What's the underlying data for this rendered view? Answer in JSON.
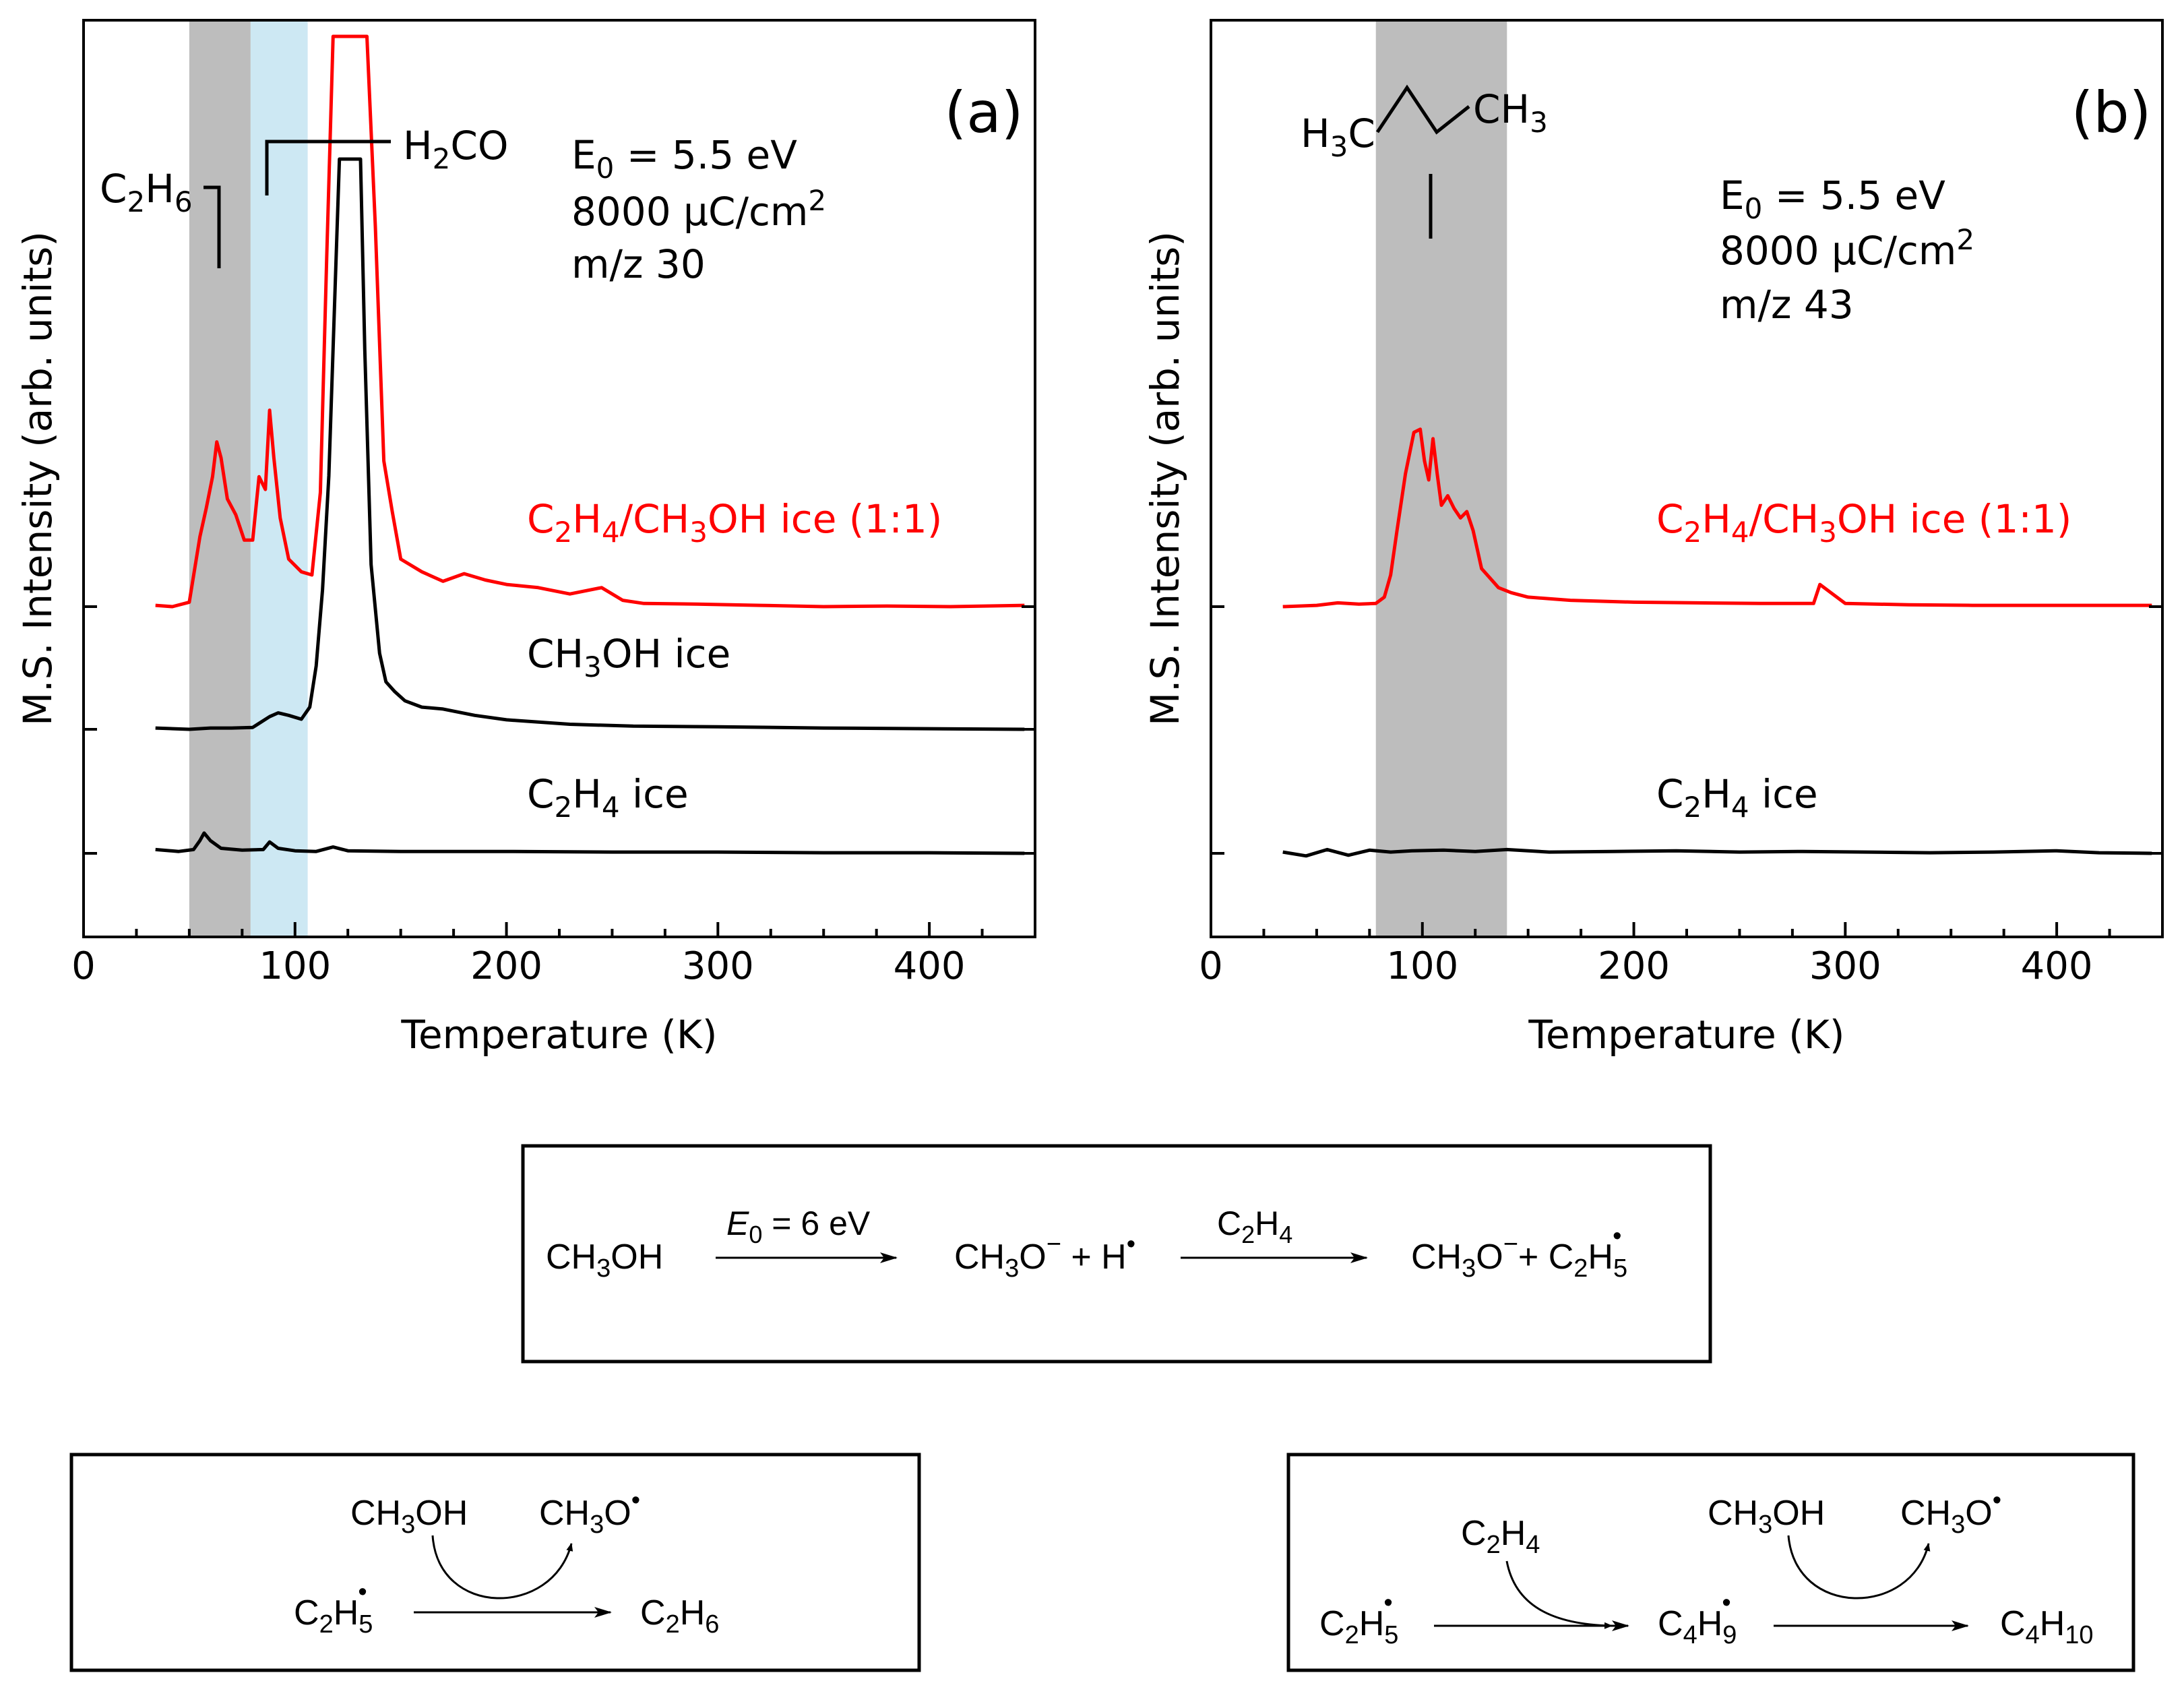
{
  "chart_data": [
    {
      "type": "line",
      "panel": "(a)",
      "xlabel": "Temperature (K)",
      "ylabel": "M.S. Intensity (arb. units)",
      "xlim": [
        0,
        450
      ],
      "x_ticks": [
        0,
        100,
        200,
        300,
        400
      ],
      "grid": false,
      "annotations": {
        "energy": [
          "E",
          "0",
          " = 5.5 eV"
        ],
        "dose": [
          "8000 μC/cm",
          "2"
        ],
        "mass": "m/z 30",
        "c2h6": [
          "C",
          "2",
          "H",
          "6"
        ],
        "h2co": [
          "H",
          "2",
          "CO"
        ]
      },
      "shaded_regions": [
        {
          "from": 50,
          "to": 79,
          "color": "#bdbdbd"
        },
        {
          "from": 79,
          "to": 106,
          "color": "#cde8f3"
        }
      ],
      "series": [
        {
          "name": [
            "C",
            "2",
            "H",
            "4",
            "/CH",
            "3",
            "OH ice (1:1)"
          ],
          "color": "#ff0000",
          "baseline": 2,
          "x": [
            34,
            42,
            50,
            55,
            58,
            61,
            63,
            65,
            68,
            72,
            76,
            80,
            83,
            86,
            88,
            90,
            93,
            97,
            103,
            108,
            112,
            115,
            118,
            122,
            128,
            134,
            138,
            142,
            146,
            150,
            160,
            170,
            180,
            190,
            200,
            215,
            230,
            245,
            255,
            265,
            290,
            320,
            350,
            380,
            410,
            445
          ],
          "y": [
            0.02,
            0.0,
            0.07,
            1.1,
            1.55,
            2.05,
            2.6,
            2.35,
            1.7,
            1.45,
            1.05,
            1.05,
            2.05,
            1.85,
            3.1,
            2.35,
            1.4,
            0.75,
            0.55,
            0.5,
            1.8,
            5.5,
            9.0,
            9.0,
            9.0,
            9.0,
            6.0,
            2.3,
            1.5,
            0.75,
            0.55,
            0.4,
            0.52,
            0.42,
            0.35,
            0.3,
            0.2,
            0.3,
            0.1,
            0.05,
            0.04,
            0.02,
            0.0,
            0.01,
            0.0,
            0.02
          ]
        },
        {
          "name": [
            "CH",
            "3",
            "OH ice"
          ],
          "color": "#000000",
          "baseline": 1,
          "x": [
            34,
            50,
            60,
            70,
            80,
            88,
            92,
            97,
            103,
            107,
            110,
            113,
            116,
            119,
            121,
            131,
            133,
            136,
            140,
            143,
            147,
            152,
            160,
            170,
            185,
            200,
            230,
            260,
            300,
            350,
            400,
            445
          ],
          "y": [
            0.02,
            0.0,
            0.02,
            0.02,
            0.03,
            0.2,
            0.26,
            0.22,
            0.16,
            0.35,
            1.0,
            2.2,
            4.0,
            7.0,
            9.0,
            9.0,
            6.0,
            2.6,
            1.2,
            0.75,
            0.6,
            0.45,
            0.35,
            0.32,
            0.22,
            0.15,
            0.08,
            0.05,
            0.04,
            0.02,
            0.01,
            0.0
          ]
        },
        {
          "name": [
            "C",
            "2",
            "H",
            "4",
            " ice"
          ],
          "color": "#000000",
          "baseline": 0,
          "x": [
            34,
            45,
            52,
            55,
            57,
            60,
            65,
            75,
            85,
            88,
            92,
            100,
            110,
            118,
            125,
            150,
            200,
            250,
            300,
            350,
            400,
            445
          ],
          "y": [
            0.06,
            0.03,
            0.06,
            0.2,
            0.32,
            0.2,
            0.08,
            0.05,
            0.06,
            0.18,
            0.08,
            0.04,
            0.03,
            0.1,
            0.04,
            0.03,
            0.03,
            0.02,
            0.02,
            0.01,
            0.01,
            0.0
          ]
        }
      ]
    },
    {
      "type": "line",
      "panel": "(b)",
      "xlabel": "Temperature (K)",
      "ylabel": "M.S. Intensity (arb. units)",
      "xlim": [
        0,
        450
      ],
      "x_ticks": [
        0,
        100,
        200,
        300,
        400
      ],
      "grid": false,
      "annotations": {
        "energy": [
          "E",
          "0",
          " = 5.5 eV"
        ],
        "dose": [
          "8000 μC/cm",
          "2"
        ],
        "mass": "m/z 43",
        "butane_left": [
          "H",
          "3",
          "C"
        ],
        "butane_right": [
          "CH",
          "3"
        ]
      },
      "shaded_regions": [
        {
          "from": 78,
          "to": 140,
          "color": "#bdbdbd"
        }
      ],
      "series": [
        {
          "name": [
            "C",
            "2",
            "H",
            "4",
            "/CH",
            "3",
            "OH ice (1:1)"
          ],
          "color": "#ff0000",
          "baseline": 2,
          "x": [
            34,
            50,
            60,
            70,
            78,
            82,
            85,
            88,
            92,
            96,
            99,
            101,
            103,
            105,
            107,
            109,
            112,
            115,
            118,
            121,
            124,
            128,
            132,
            136,
            142,
            150,
            170,
            200,
            230,
            260,
            285,
            288,
            300,
            330,
            360,
            400,
            445
          ],
          "y": [
            0.0,
            0.02,
            0.06,
            0.04,
            0.05,
            0.15,
            0.5,
            1.2,
            2.1,
            2.75,
            2.8,
            2.3,
            2.0,
            2.65,
            2.1,
            1.6,
            1.75,
            1.55,
            1.4,
            1.5,
            1.2,
            0.6,
            0.45,
            0.3,
            0.22,
            0.15,
            0.1,
            0.07,
            0.06,
            0.05,
            0.05,
            0.35,
            0.05,
            0.03,
            0.02,
            0.02,
            0.02
          ]
        },
        {
          "name": [
            "C",
            "2",
            "H",
            "4",
            " ice"
          ],
          "color": "#000000",
          "baseline": 0,
          "x": [
            34,
            45,
            55,
            65,
            75,
            85,
            95,
            110,
            125,
            140,
            160,
            190,
            220,
            250,
            280,
            310,
            340,
            370,
            400,
            420,
            445
          ],
          "y": [
            0.02,
            -0.04,
            0.06,
            -0.03,
            0.05,
            0.02,
            0.04,
            0.05,
            0.03,
            0.06,
            0.02,
            0.03,
            0.04,
            0.02,
            0.03,
            0.02,
            0.01,
            0.02,
            0.04,
            0.01,
            0.0
          ]
        }
      ]
    }
  ],
  "schemes": {
    "main": {
      "reactant": [
        "CH",
        "3",
        "OH"
      ],
      "arrow1_label": [
        "E",
        "0",
        " = 6 eV"
      ],
      "intermediate": [
        "CH",
        "3",
        "O",
        "−",
        " + H",
        "•"
      ],
      "arrow2_label": [
        "C",
        "2",
        "H",
        "4"
      ],
      "product": [
        "CH",
        "3",
        "O",
        "−",
        "+ C",
        "2",
        "H",
        "5",
        "•"
      ]
    },
    "left": {
      "catalyst_in": [
        "CH",
        "3",
        "OH"
      ],
      "catalyst_out": [
        "CH",
        "3",
        "O",
        "•"
      ],
      "reactant": [
        "C",
        "2",
        "H",
        "5",
        "•"
      ],
      "product": [
        "C",
        "2",
        "H",
        "6"
      ]
    },
    "right": {
      "reagent": [
        "C",
        "2",
        "H",
        "4"
      ],
      "catalyst_in": [
        "CH",
        "3",
        "OH"
      ],
      "catalyst_out": [
        "CH",
        "3",
        "O",
        "•"
      ],
      "reactant": [
        "C",
        "2",
        "H",
        "5",
        "•"
      ],
      "intermediate": [
        "C",
        "4",
        "H",
        "9",
        "•"
      ],
      "product": [
        "C",
        "4",
        "H",
        "10"
      ]
    }
  }
}
